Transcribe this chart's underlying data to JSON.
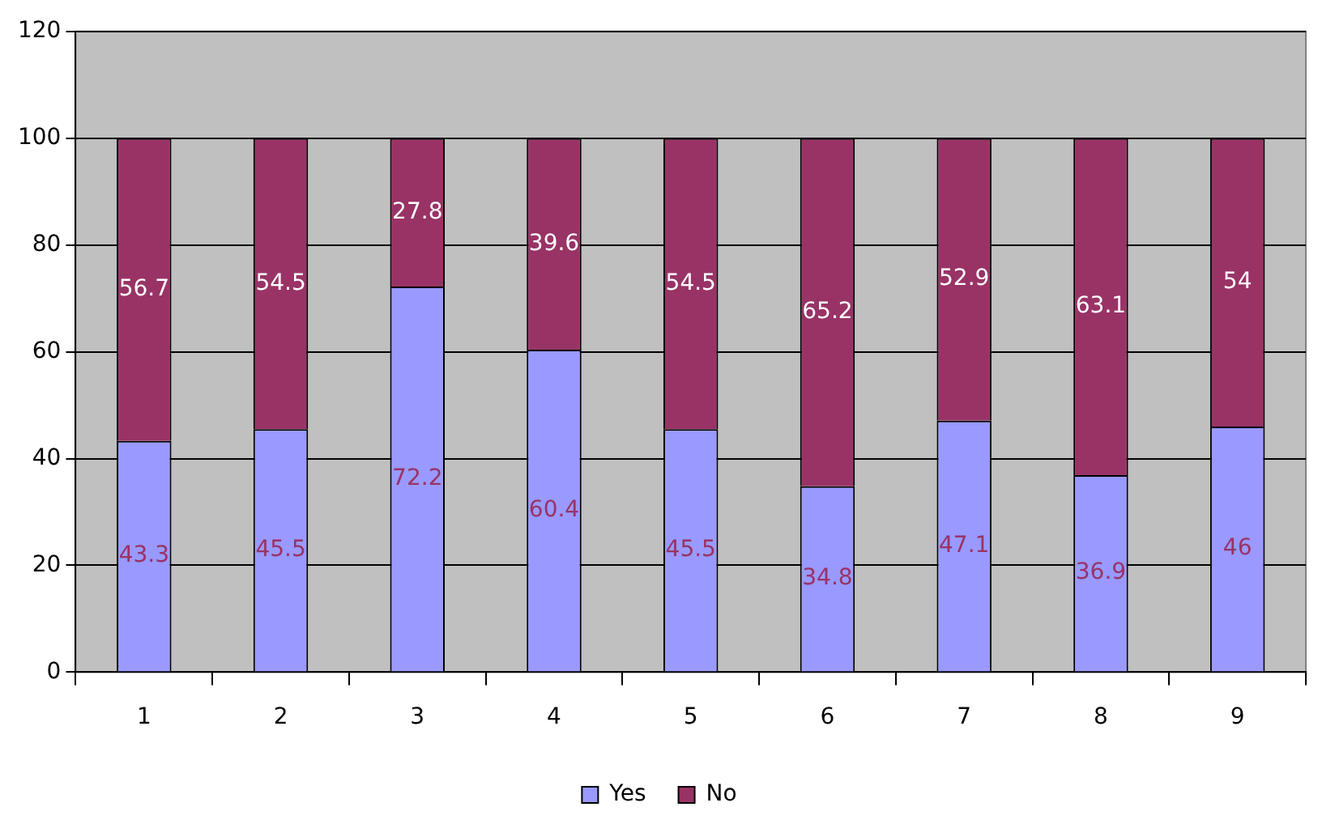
{
  "chart_data": {
    "type": "bar",
    "stacked": true,
    "categories": [
      "1",
      "2",
      "3",
      "4",
      "5",
      "6",
      "7",
      "8",
      "9"
    ],
    "series": [
      {
        "name": "Yes",
        "color": "#9999ff",
        "values": [
          43.3,
          45.5,
          72.2,
          60.4,
          45.5,
          34.8,
          47.1,
          36.9,
          46
        ]
      },
      {
        "name": "No",
        "color": "#993366",
        "values": [
          56.7,
          54.5,
          27.8,
          39.6,
          54.5,
          65.2,
          52.9,
          63.1,
          54
        ]
      }
    ],
    "ylim": [
      0,
      120
    ],
    "yticks": [
      0,
      20,
      40,
      60,
      80,
      100,
      120
    ],
    "grid": "y",
    "legend": "bottom",
    "data_labels": true
  }
}
